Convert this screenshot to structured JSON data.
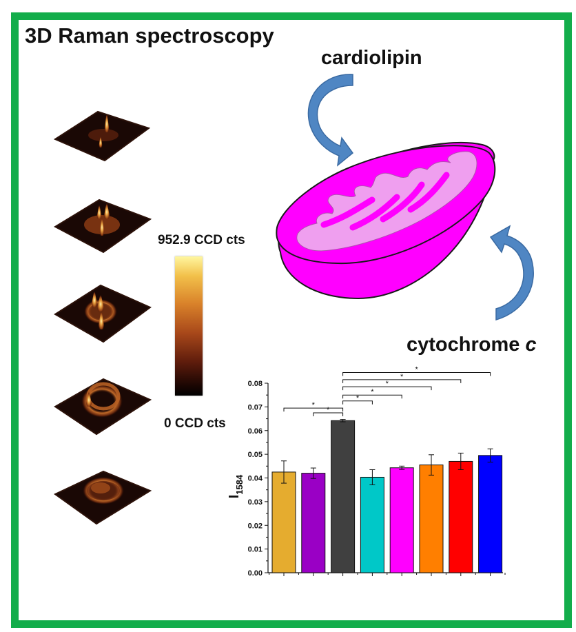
{
  "title": "3D Raman spectroscopy",
  "labels": {
    "cardiolipin": "cardiolipin",
    "cytochrome_main": "cytochrome ",
    "cytochrome_italic": "c"
  },
  "colorbar": {
    "max_label": "952.9 CCD cts",
    "min_label": "0 CCD cts"
  },
  "colors": {
    "frame": "#13ad4b",
    "mitochondrion_outer": "#ff00ff",
    "mitochondrion_inner": "#f0a0f0",
    "arrow": "#4f86c3"
  },
  "chart_data": {
    "type": "bar",
    "ylabel": "I",
    "ylabel_sub": "1584",
    "ylim": [
      0,
      0.08
    ],
    "yticks": [
      "0.00",
      "0.01",
      "0.02",
      "0.03",
      "0.04",
      "0.05",
      "0.06",
      "0.07",
      "0.08"
    ],
    "values": [
      0.0425,
      0.042,
      0.0642,
      0.0403,
      0.0443,
      0.0455,
      0.047,
      0.0495
    ],
    "errors": [
      0.0047,
      0.0022,
      0.0005,
      0.0032,
      0.0007,
      0.0043,
      0.0035,
      0.0028
    ],
    "colors": [
      "#e5ac2f",
      "#9a00c5",
      "#404040",
      "#00c8c8",
      "#ff00ff",
      "#ff7f00",
      "#ff0000",
      "#0000ff"
    ],
    "significance": [
      {
        "from": 0,
        "to": 2,
        "y": 0.0695,
        "label": "*"
      },
      {
        "from": 1,
        "to": 2,
        "y": 0.0675,
        "label": "*"
      },
      {
        "from": 2,
        "to": 3,
        "y": 0.0725,
        "label": "*"
      },
      {
        "from": 2,
        "to": 4,
        "y": 0.075,
        "label": "*"
      },
      {
        "from": 2,
        "to": 5,
        "y": 0.0785,
        "label": "*"
      },
      {
        "from": 2,
        "to": 6,
        "y": 0.0815,
        "label": "*"
      },
      {
        "from": 2,
        "to": 7,
        "y": 0.0845,
        "label": "*"
      }
    ]
  }
}
